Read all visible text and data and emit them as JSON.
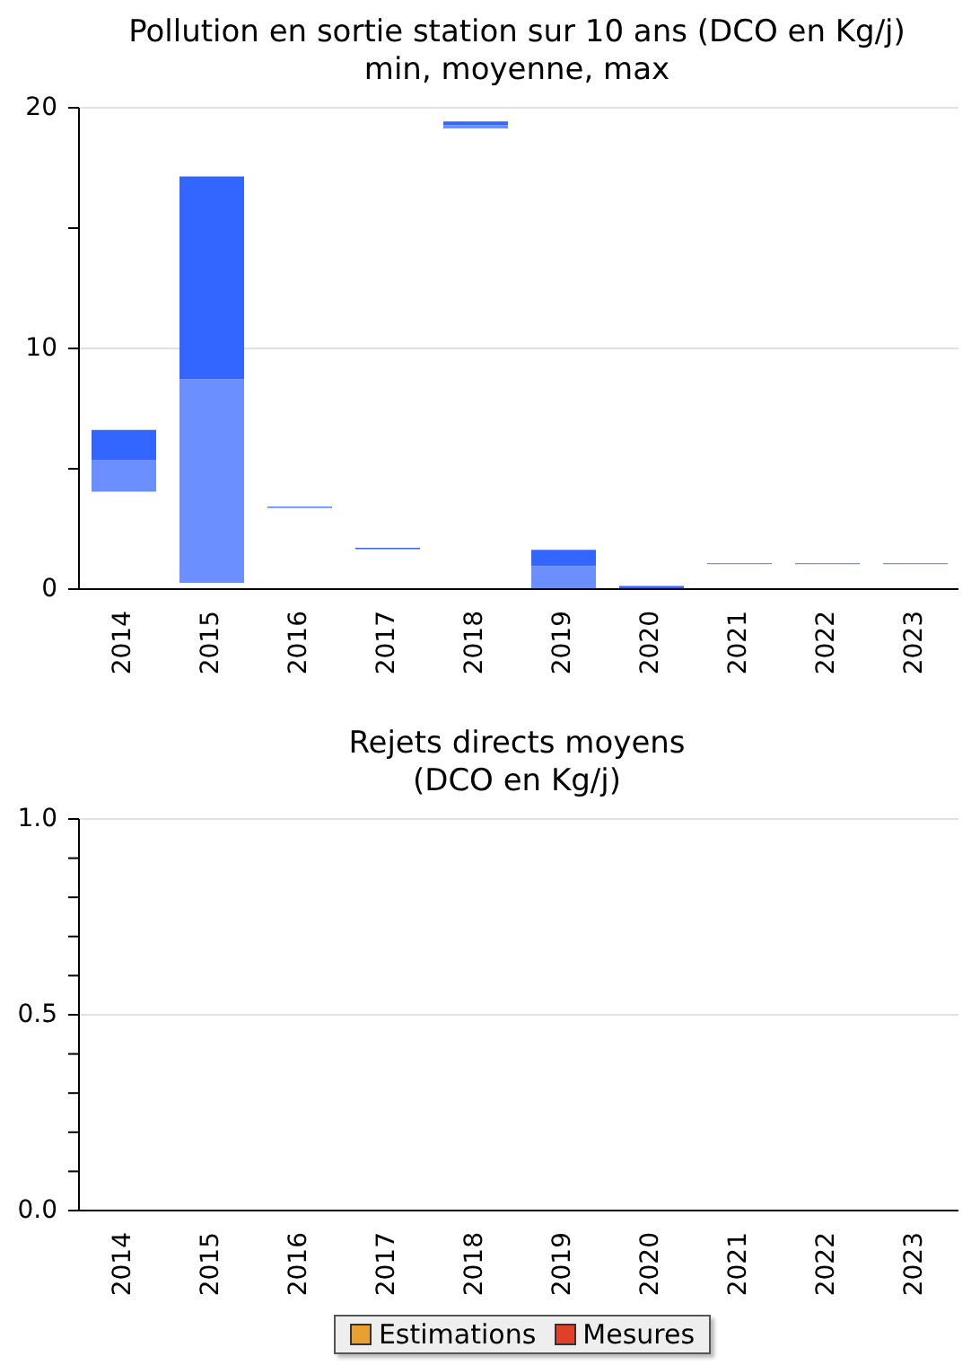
{
  "chart_data": [
    {
      "type": "bar",
      "title": "Pollution en sortie station sur 10 ans (DCO en Kg/j)",
      "subtitle": "min, moyenne, max",
      "categories": [
        "2014",
        "2015",
        "2016",
        "2017",
        "2018",
        "2019",
        "2020",
        "2021",
        "2022",
        "2023"
      ],
      "series": [
        {
          "color": "#6b8fff",
          "base": [
            4.05,
            0.26,
            3.37,
            null,
            19.14,
            0,
            0,
            1.04,
            1.04,
            1.04
          ],
          "values": [
            1.32,
            8.46,
            0.06,
            null,
            0.14,
            0.96,
            0.03,
            0.04,
            0.04,
            0.04
          ]
        },
        {
          "color": "#3366ff",
          "base": [
            5.37,
            8.72,
            null,
            1.66,
            19.28,
            0.96,
            0.03,
            null,
            null,
            null
          ],
          "values": [
            1.24,
            8.43,
            null,
            0.06,
            0.15,
            0.67,
            0.1,
            null,
            null,
            null
          ]
        }
      ],
      "ylim": [
        0,
        20
      ],
      "yticks": [
        0,
        {
          "value": 5,
          "label": null
        },
        10,
        {
          "value": 15,
          "label": null
        },
        20
      ],
      "grid": "y",
      "legend": false
    },
    {
      "type": "bar",
      "title": "Rejets directs moyens",
      "subtitle": "(DCO en Kg/j)",
      "categories": [
        "2014",
        "2015",
        "2016",
        "2017",
        "2018",
        "2019",
        "2020",
        "2021",
        "2022",
        "2023"
      ],
      "series": [
        {
          "name": "Estimations",
          "color": "#e8a030",
          "values": [
            null,
            null,
            null,
            null,
            null,
            null,
            null,
            null,
            null,
            null
          ]
        },
        {
          "name": "Mesures",
          "color": "#e04028",
          "values": [
            null,
            null,
            null,
            null,
            null,
            null,
            null,
            null,
            null,
            null
          ]
        }
      ],
      "ylim": [
        0,
        1
      ],
      "yticks": [
        {
          "value": 0,
          "label": "0.0"
        },
        {
          "value": 0.1,
          "label": null
        },
        {
          "value": 0.2,
          "label": null
        },
        {
          "value": 0.3,
          "label": null
        },
        {
          "value": 0.4,
          "label": null
        },
        {
          "value": 0.5,
          "label": "0.5"
        },
        {
          "value": 0.6,
          "label": null
        },
        {
          "value": 0.7,
          "label": null
        },
        {
          "value": 0.8,
          "label": null
        },
        {
          "value": 0.9,
          "label": null
        },
        {
          "value": 1,
          "label": "1.0"
        }
      ],
      "grid": "y",
      "legend": "bottom"
    }
  ]
}
